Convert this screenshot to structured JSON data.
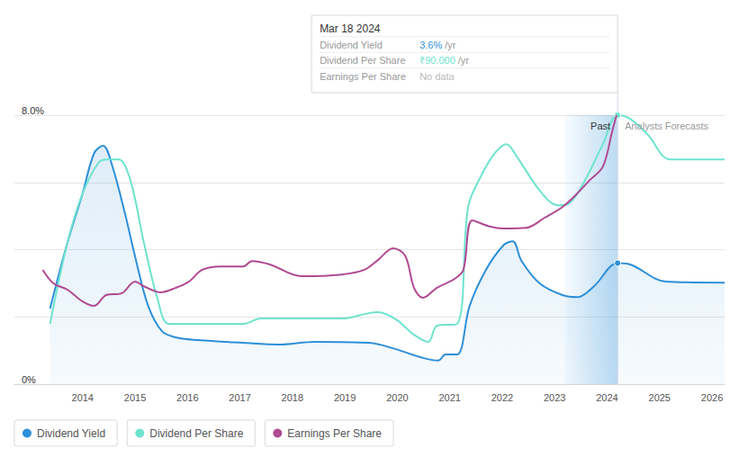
{
  "chart_data": {
    "type": "line",
    "xlim": [
      2012.7,
      2026.24
    ],
    "xticks": [
      2014,
      2015,
      2016,
      2017,
      2018,
      2019,
      2020,
      2021,
      2022,
      2023,
      2024,
      2025,
      2026
    ],
    "ylim": [
      0,
      8
    ],
    "yticks": [
      {
        "value": 0,
        "label": "0%"
      },
      {
        "value": 2,
        "label": null
      },
      {
        "value": 4,
        "label": null
      },
      {
        "value": 6,
        "label": null
      },
      {
        "value": 8,
        "label": "8.0%"
      }
    ],
    "grid": true,
    "legend": "bottom",
    "past_region": [
      2023.2,
      2024.2
    ],
    "past_label": "Past",
    "forecast_label": "Analysts Forecasts",
    "tooltip": {
      "x": 2024.2,
      "title": "Mar 18 2024",
      "rows": [
        {
          "label": "Dividend Yield",
          "value": "3.6%",
          "unit": "/yr"
        },
        {
          "label": "Dividend Per Share",
          "value": "₹90.000",
          "unit": "/yr"
        },
        {
          "label": "Earnings Per Share",
          "value": "No data"
        }
      ]
    },
    "series": [
      {
        "name": "Dividend Yield",
        "color": "#2d8fd9",
        "type": "area",
        "x": [
          2013.38,
          2013.71,
          2014.0,
          2014.22,
          2014.39,
          2014.57,
          2014.82,
          2015.0,
          2015.25,
          2015.51,
          2015.77,
          2016.2,
          2017.06,
          2017.74,
          2018.43,
          2019.46,
          2019.97,
          2020.49,
          2020.78,
          2020.92,
          2021.14,
          2021.38,
          2021.69,
          2022.03,
          2022.2,
          2022.37,
          2022.72,
          2023.15,
          2023.44,
          2023.75,
          2024.2,
          2024.44,
          2025.12,
          2026.24
        ],
        "values": [
          2.25,
          4.2,
          5.67,
          6.87,
          7.09,
          6.47,
          5.0,
          3.8,
          2.33,
          1.58,
          1.39,
          1.31,
          1.23,
          1.18,
          1.26,
          1.23,
          1.04,
          0.78,
          0.7,
          0.88,
          0.88,
          2.33,
          3.4,
          4.14,
          4.25,
          3.66,
          2.99,
          2.65,
          2.59,
          2.91,
          3.6,
          3.56,
          3.05,
          3.02
        ]
      },
      {
        "name": "Dividend Per Share",
        "color": "#6fe3cf",
        "type": "line",
        "x": [
          2013.38,
          2013.71,
          2014.0,
          2014.31,
          2014.48,
          2014.69,
          2014.91,
          2015.17,
          2015.42,
          2015.65,
          2016.2,
          2017.06,
          2017.4,
          2018.94,
          2019.46,
          2019.63,
          2019.97,
          2020.32,
          2020.59,
          2020.76,
          2021.14,
          2021.35,
          2021.6,
          2021.86,
          2022.08,
          2022.29,
          2022.72,
          2023.06,
          2023.27,
          2023.58,
          2023.92,
          2024.2,
          2024.44,
          2024.78,
          2025.21,
          2026.24
        ],
        "values": [
          1.79,
          4.2,
          5.67,
          6.6,
          6.68,
          6.68,
          6.07,
          4.2,
          2.59,
          1.79,
          1.79,
          1.79,
          1.95,
          1.95,
          2.11,
          2.14,
          1.93,
          1.47,
          1.26,
          1.74,
          1.79,
          5.27,
          6.2,
          6.87,
          7.14,
          6.74,
          5.75,
          5.32,
          5.37,
          6.07,
          7.14,
          8.0,
          7.89,
          7.41,
          6.68,
          6.68
        ]
      },
      {
        "name": "Earnings Per Share",
        "color": "#b04a93",
        "type": "line",
        "x": [
          2013.24,
          2013.45,
          2013.71,
          2014.0,
          2014.22,
          2014.45,
          2014.74,
          2015.0,
          2015.17,
          2015.48,
          2015.77,
          2016.03,
          2016.28,
          2016.63,
          2017.06,
          2017.23,
          2017.57,
          2018.17,
          2018.94,
          2019.37,
          2019.63,
          2019.92,
          2020.15,
          2020.32,
          2020.49,
          2020.75,
          2021.09,
          2021.26,
          2021.43,
          2021.78,
          2022.03,
          2022.46,
          2022.81,
          2023.15,
          2023.41,
          2023.67,
          2023.92,
          2024.1,
          2024.18
        ],
        "values": [
          3.4,
          2.99,
          2.81,
          2.46,
          2.33,
          2.65,
          2.7,
          3.05,
          2.91,
          2.73,
          2.86,
          3.05,
          3.4,
          3.5,
          3.5,
          3.66,
          3.56,
          3.21,
          3.26,
          3.4,
          3.69,
          4.04,
          3.82,
          2.86,
          2.57,
          2.86,
          3.13,
          3.4,
          4.87,
          4.68,
          4.63,
          4.65,
          4.95,
          5.27,
          5.64,
          6.07,
          6.47,
          7.54,
          8.0
        ]
      }
    ]
  }
}
